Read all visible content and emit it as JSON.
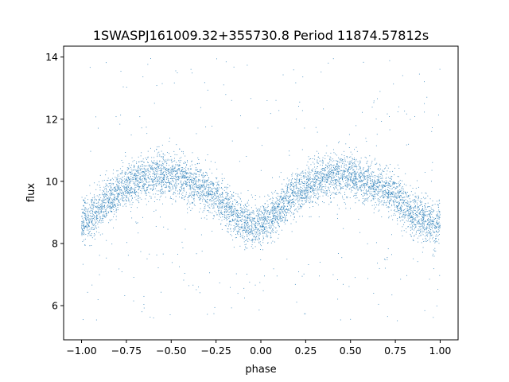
{
  "chart_data": {
    "type": "scatter",
    "title": "1SWASPJ161009.32+355730.8 Period 11874.57812s",
    "xlabel": "phase",
    "ylabel": "flux",
    "xlim": [
      -1.1,
      1.1
    ],
    "ylim": [
      4.9,
      14.35
    ],
    "xticks": [
      -1.0,
      -0.75,
      -0.5,
      -0.25,
      0.0,
      0.25,
      0.5,
      0.75,
      1.0
    ],
    "xtick_labels": [
      "−1.00",
      "−0.75",
      "−0.50",
      "−0.25",
      "0.00",
      "0.25",
      "0.50",
      "0.75",
      "1.00"
    ],
    "yticks": [
      6,
      8,
      10,
      12,
      14
    ],
    "ytick_labels": [
      "6",
      "8",
      "10",
      "12",
      "14"
    ],
    "grid": false,
    "legend": "none",
    "marker_color": "#1f77b4",
    "series": [
      {
        "x": [
          -1.0,
          -0.95,
          -0.9,
          -0.85,
          -0.8,
          -0.75,
          -0.7,
          -0.65,
          -0.6,
          -0.55,
          -0.5,
          -0.45,
          -0.4,
          -0.35,
          -0.3,
          -0.25,
          -0.2,
          -0.15,
          -0.1,
          -0.05,
          0.0,
          0.05,
          0.1,
          0.15,
          0.2,
          0.25,
          0.3,
          0.35,
          0.4,
          0.45,
          0.5,
          0.55,
          0.6,
          0.65,
          0.7,
          0.75,
          0.8,
          0.85,
          0.9,
          0.95,
          1.0
        ],
        "y": [
          8.7,
          8.85,
          9.1,
          9.4,
          9.65,
          9.85,
          10.0,
          10.1,
          10.2,
          10.22,
          10.2,
          10.1,
          10.0,
          9.85,
          9.7,
          9.5,
          9.2,
          8.9,
          8.7,
          8.6,
          8.65,
          8.75,
          9.1,
          9.4,
          9.65,
          9.85,
          10.0,
          10.1,
          10.2,
          10.22,
          10.2,
          10.1,
          10.0,
          9.85,
          9.7,
          9.5,
          9.2,
          8.95,
          8.75,
          8.65,
          8.7
        ],
        "spread": 0.35,
        "outlier_range": [
          5.5,
          14.0
        ],
        "point_count": 6500
      }
    ]
  }
}
